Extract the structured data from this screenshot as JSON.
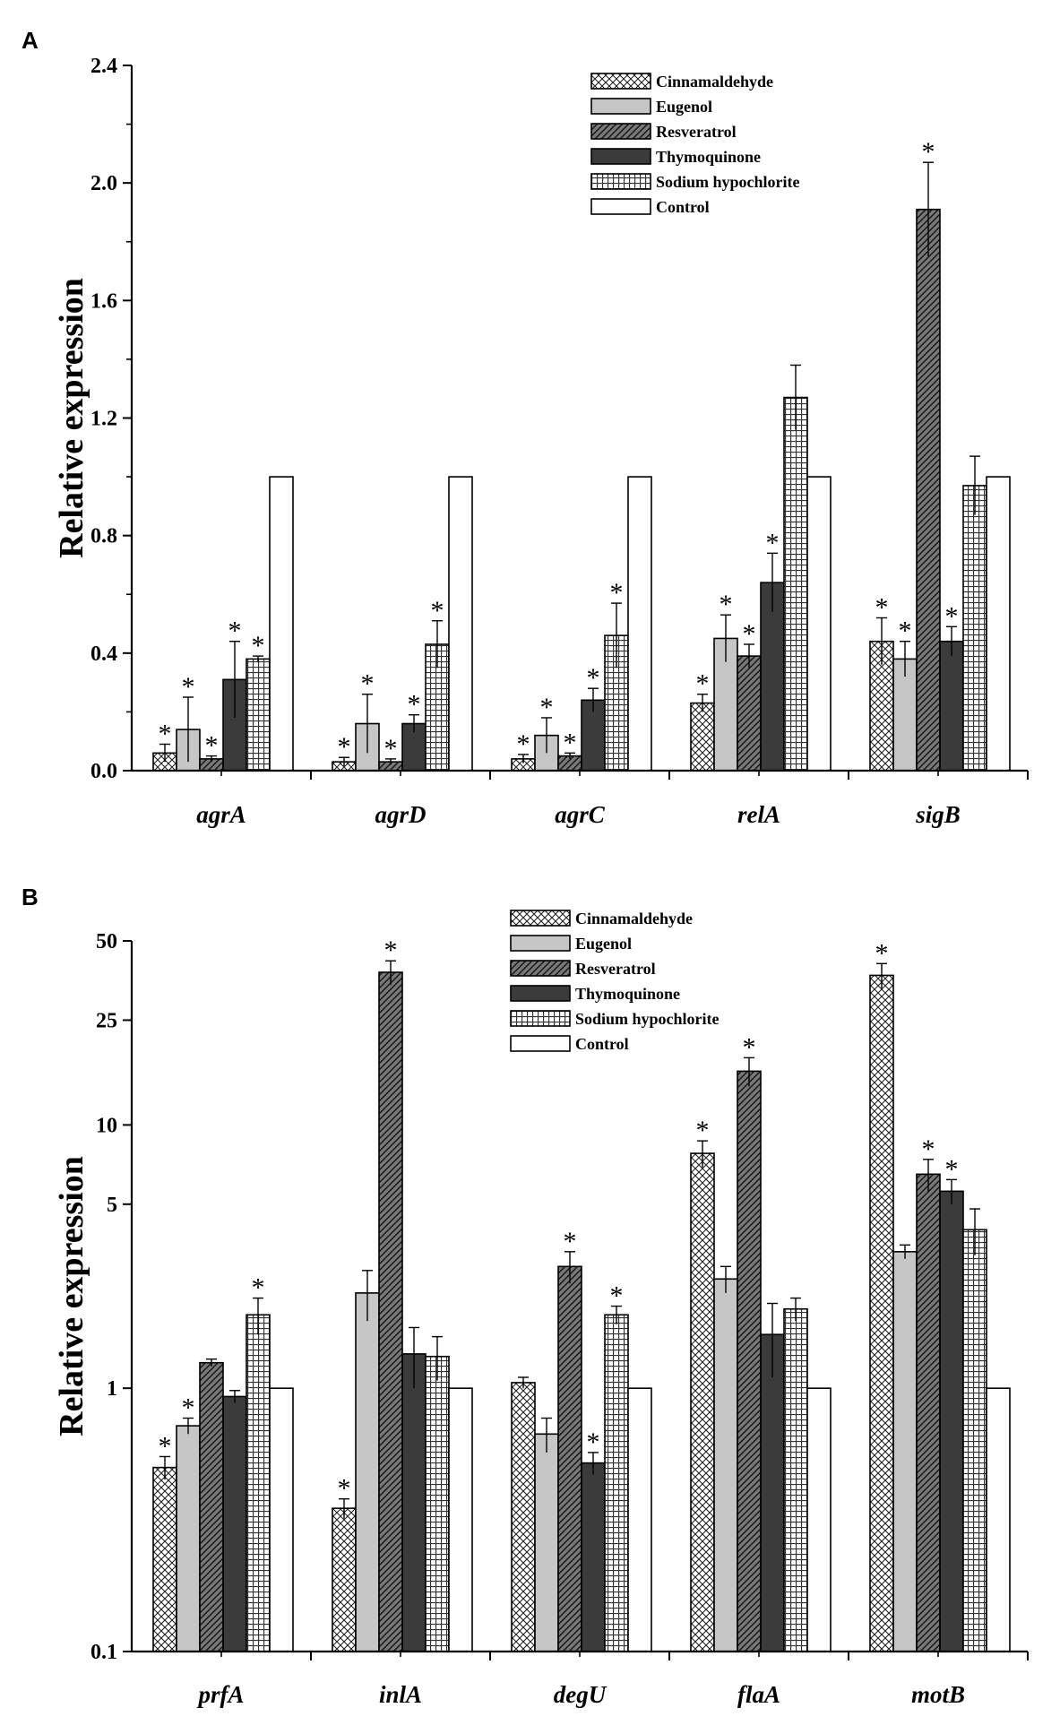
{
  "chart_data": [
    {
      "panel": "A",
      "type": "bar",
      "ylabel": "Relative expression",
      "xlabel": "",
      "yscale": "linear",
      "ylim": [
        0,
        2.4
      ],
      "yticks": [
        0.0,
        0.4,
        0.8,
        1.2,
        1.6,
        2.0,
        2.4
      ],
      "ytick_labels": [
        "0.0",
        "0.4",
        "0.8",
        "1.2",
        "1.6",
        "2.0",
        "2.4"
      ],
      "categories": [
        "agrA",
        "agrD",
        "agrC",
        "relA",
        "sigB"
      ],
      "legend_position": "top-right",
      "series": [
        {
          "name": "Cinnamaldehyde",
          "pattern": "crosshatch",
          "values": [
            0.06,
            0.03,
            0.04,
            0.23,
            0.44
          ],
          "errors": [
            0.03,
            0.015,
            0.015,
            0.03,
            0.08
          ],
          "significant": [
            true,
            true,
            true,
            true,
            true
          ]
        },
        {
          "name": "Eugenol",
          "pattern": "lightgray",
          "values": [
            0.14,
            0.16,
            0.12,
            0.45,
            0.38
          ],
          "errors": [
            0.11,
            0.1,
            0.06,
            0.08,
            0.06
          ],
          "significant": [
            true,
            true,
            true,
            true,
            true
          ]
        },
        {
          "name": "Resveratrol",
          "pattern": "diagonal",
          "values": [
            0.04,
            0.03,
            0.05,
            0.39,
            1.91
          ],
          "errors": [
            0.01,
            0.01,
            0.01,
            0.04,
            0.16
          ],
          "significant": [
            true,
            true,
            true,
            true,
            true
          ]
        },
        {
          "name": "Thymoquinone",
          "pattern": "darkgray",
          "values": [
            0.31,
            0.16,
            0.24,
            0.64,
            0.44
          ],
          "errors": [
            0.13,
            0.03,
            0.04,
            0.1,
            0.05
          ],
          "significant": [
            true,
            true,
            true,
            true,
            true
          ]
        },
        {
          "name": "Sodium hypochlorite",
          "pattern": "grid",
          "values": [
            0.38,
            0.43,
            0.46,
            1.27,
            0.97
          ],
          "errors": [
            0.01,
            0.08,
            0.11,
            0.11,
            0.1
          ],
          "significant": [
            true,
            true,
            true,
            false,
            false
          ]
        },
        {
          "name": "Control",
          "pattern": "white",
          "values": [
            1.0,
            1.0,
            1.0,
            1.0,
            1.0
          ],
          "errors": [
            0,
            0,
            0,
            0,
            0
          ],
          "significant": [
            false,
            false,
            false,
            false,
            false
          ]
        }
      ]
    },
    {
      "panel": "B",
      "type": "bar",
      "ylabel": "Relative expression",
      "xlabel": "",
      "yscale": "log",
      "ylim": [
        0.1,
        50
      ],
      "yticks": [
        0.1,
        1,
        5,
        10,
        25,
        50
      ],
      "ytick_labels": [
        "0.1",
        "1",
        "5",
        "10",
        "25",
        "50"
      ],
      "categories": [
        "prfA",
        "inlA",
        "degU",
        "flaA",
        "motB"
      ],
      "legend_position": "top-center",
      "series": [
        {
          "name": "Cinnamaldehyde",
          "pattern": "crosshatch",
          "values": [
            0.5,
            0.35,
            1.05,
            7.8,
            37
          ],
          "errors": [
            0.05,
            0.03,
            0.05,
            0.9,
            4
          ],
          "significant": [
            true,
            true,
            false,
            true,
            true
          ]
        },
        {
          "name": "Eugenol",
          "pattern": "lightgray",
          "values": [
            0.72,
            2.3,
            0.67,
            2.6,
            3.3
          ],
          "errors": [
            0.05,
            0.5,
            0.1,
            0.3,
            0.2
          ],
          "significant": [
            true,
            false,
            false,
            false,
            false
          ]
        },
        {
          "name": "Resveratrol",
          "pattern": "diagonal",
          "values": [
            1.25,
            38,
            2.9,
            16,
            6.5
          ],
          "errors": [
            0.04,
            4,
            0.4,
            2,
            0.9
          ],
          "significant": [
            false,
            true,
            true,
            true,
            true
          ]
        },
        {
          "name": "Thymoquinone",
          "pattern": "darkgray",
          "values": [
            0.93,
            1.35,
            0.52,
            1.6,
            5.6
          ],
          "errors": [
            0.05,
            0.35,
            0.05,
            0.5,
            0.6
          ],
          "significant": [
            false,
            false,
            true,
            false,
            true
          ]
        },
        {
          "name": "Sodium hypochlorite",
          "pattern": "grid",
          "values": [
            1.9,
            1.32,
            1.9,
            2.0,
            4.0
          ],
          "errors": [
            0.3,
            0.25,
            0.15,
            0.2,
            0.8
          ],
          "significant": [
            true,
            false,
            true,
            false,
            false
          ]
        },
        {
          "name": "Control",
          "pattern": "white",
          "values": [
            1.0,
            1.0,
            1.0,
            1.0,
            1.0
          ],
          "errors": [
            0,
            0,
            0,
            0,
            0
          ],
          "significant": [
            false,
            false,
            false,
            false,
            false
          ]
        }
      ]
    }
  ]
}
